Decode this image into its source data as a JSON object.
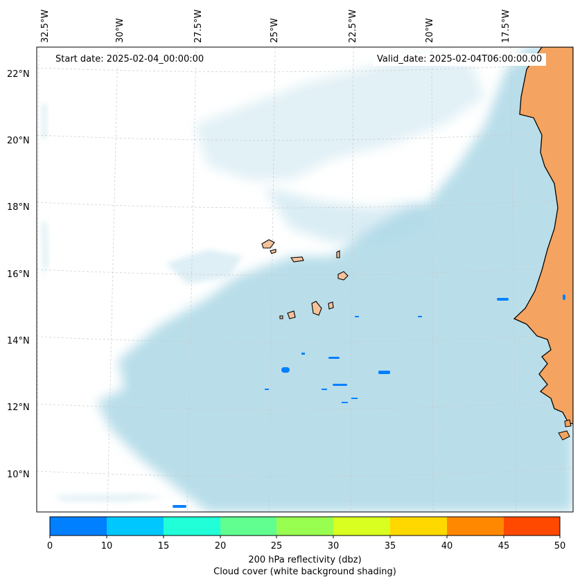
{
  "map": {
    "start_date": "Start date: 2025-02-04_00:00:00",
    "valid_date": "Valid_date: 2025-02-04T06:00:00.00",
    "lon_labels": [
      "32.5°W",
      "30°W",
      "27.5°W",
      "25°W",
      "22.5°W",
      "20°W",
      "17.5°W"
    ],
    "lat_labels": [
      "22°N",
      "20°N",
      "18°N",
      "16°N",
      "14°N",
      "12°N",
      "10°N"
    ],
    "cloud_color": "#add8e6",
    "land_color": "#f4a460",
    "island_color": "#f5c29b",
    "reflectivity_cells_value": "0-10 dbz"
  },
  "colorbar": {
    "ticks": [
      "0",
      "10",
      "15",
      "20",
      "25",
      "30",
      "35",
      "40",
      "45",
      "50"
    ],
    "colors": [
      "#0080ff",
      "#00c8ff",
      "#20ffd8",
      "#60ff90",
      "#98ff50",
      "#d8ff20",
      "#ffd800",
      "#ff8800",
      "#ff4800"
    ],
    "label": "200 hPa reflectivity (dbz)",
    "sublabel": "Cloud cover (white background shading)"
  }
}
